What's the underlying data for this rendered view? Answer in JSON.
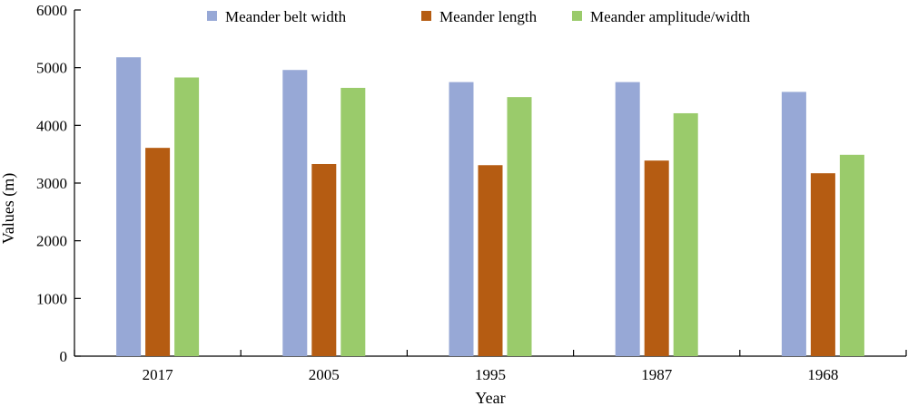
{
  "chart_data": {
    "type": "bar",
    "title": "",
    "xlabel": "Year",
    "ylabel": "Values (m)",
    "categories": [
      "2017",
      "2005",
      "1995",
      "1987",
      "1968"
    ],
    "ylim": [
      0,
      6000
    ],
    "yticks": [
      0,
      1000,
      2000,
      3000,
      4000,
      5000,
      6000
    ],
    "grid": false,
    "legend_position": "top",
    "series": [
      {
        "name": "Meander belt width",
        "color": "#97a8d6",
        "values": [
          5180,
          4960,
          4750,
          4750,
          4580
        ]
      },
      {
        "name": "Meander length",
        "color": "#b55c12",
        "values": [
          3610,
          3330,
          3310,
          3390,
          3170
        ]
      },
      {
        "name": "Meander amplitude/width",
        "color": "#9acb6b",
        "values": [
          4830,
          4650,
          4490,
          4210,
          3490
        ]
      }
    ]
  }
}
